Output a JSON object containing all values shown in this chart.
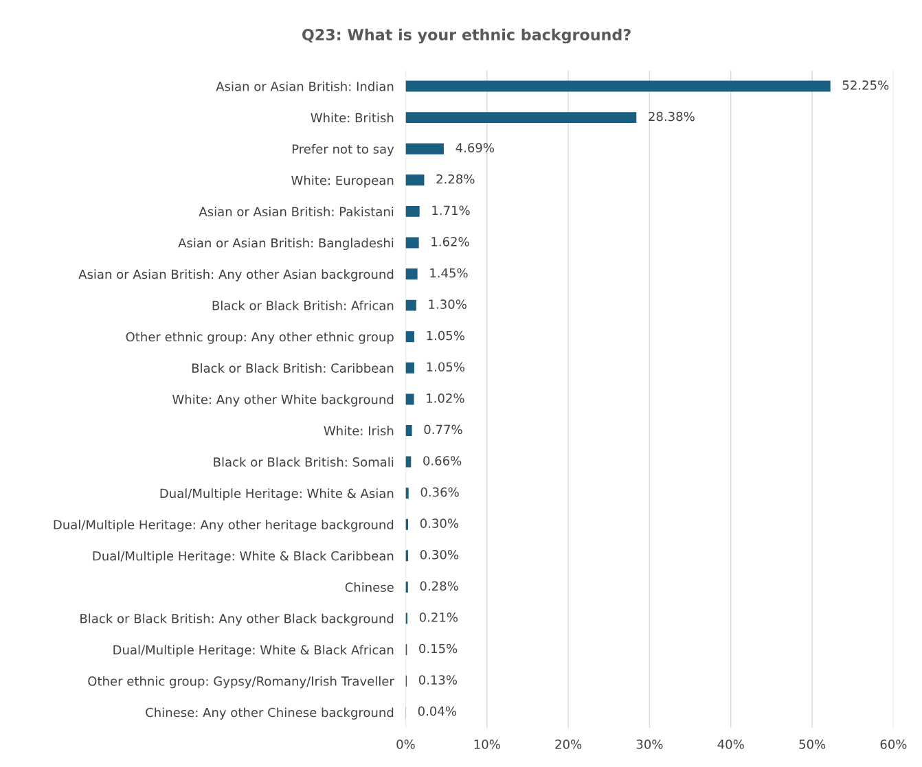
{
  "chart_data": {
    "type": "bar",
    "orientation": "horizontal",
    "title": "Q23: What is your ethnic background?",
    "categories": [
      "Asian or Asian British: Indian",
      "White: British",
      "Prefer not to say",
      "White: European",
      "Asian or Asian British: Pakistani",
      "Asian or Asian British: Bangladeshi",
      "Asian or Asian British: Any other Asian background",
      "Black or Black British: African",
      "Other ethnic group: Any other ethnic group",
      "Black or Black British: Caribbean",
      "White: Any other White background",
      "White: Irish",
      "Black or Black British: Somali",
      "Dual/Multiple Heritage: White & Asian",
      "Dual/Multiple Heritage: Any other heritage background",
      "Dual/Multiple Heritage: White & Black Caribbean",
      "Chinese",
      "Black or Black British: Any other Black background",
      "Dual/Multiple Heritage: White & Black African",
      "Other ethnic group: Gypsy/Romany/Irish Traveller",
      "Chinese: Any other Chinese background"
    ],
    "values": [
      52.25,
      28.38,
      4.69,
      2.28,
      1.71,
      1.62,
      1.45,
      1.3,
      1.05,
      1.05,
      1.02,
      0.77,
      0.66,
      0.36,
      0.3,
      0.3,
      0.28,
      0.21,
      0.15,
      0.13,
      0.04
    ],
    "value_labels": [
      "52.25%",
      "28.38%",
      "4.69%",
      "2.28%",
      "1.71%",
      "1.62%",
      "1.45%",
      "1.30%",
      "1.05%",
      "1.05%",
      "1.02%",
      "0.77%",
      "0.66%",
      "0.36%",
      "0.30%",
      "0.30%",
      "0.28%",
      "0.21%",
      "0.15%",
      "0.13%",
      "0.04%"
    ],
    "color": "#1a5e82",
    "xlim": [
      0,
      60
    ],
    "xticks": [
      {
        "value": 0,
        "label": "0%"
      },
      {
        "value": 10,
        "label": "10%"
      },
      {
        "value": 20,
        "label": "20%"
      },
      {
        "value": 30,
        "label": "30%"
      },
      {
        "value": 40,
        "label": "40%"
      },
      {
        "value": 50,
        "label": "50%"
      },
      {
        "value": 60,
        "label": "60%"
      }
    ],
    "grid": "x"
  }
}
